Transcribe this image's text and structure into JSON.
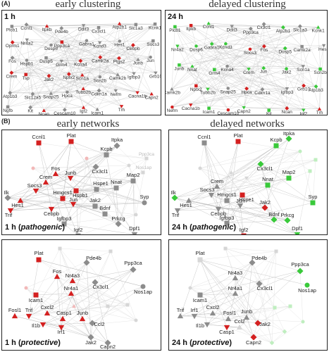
{
  "section_a": "(A)",
  "section_b": "(B)",
  "titles": {
    "early_clustering": "early clustering",
    "delayed_clustering": "delayed clustering",
    "early_networks": "early networks",
    "delayed_networks": "delayed networks"
  },
  "panels": {
    "a1": "1 h",
    "a2": "24 h",
    "b1_time": "1 h",
    "b1_cond": "pathogenic",
    "b2_time": "24 h",
    "b2_cond": "pathogenic",
    "b3_time": "1 h",
    "b3_cond": "protective",
    "b4_time": "24 h",
    "b4_cond": "protective"
  },
  "colors": {
    "red": "#d42020",
    "green": "#39c93a",
    "gray": "#8c8c8c",
    "faint_red": "#f2b8b8",
    "faint_gray": "#d6d6d6",
    "faint_green": "#bfeebf",
    "edge": "#b8b8b8"
  },
  "cluster_labels_a1": [
    "Plcb1",
    "Ccnl1",
    "Itpkb",
    "Pde4b",
    "Ddit3",
    "Cx3cl1",
    "Atp2b1",
    "Slc1a3",
    "Kcnk1",
    "Oprm1",
    "Nr4a2",
    "Dusp6",
    "Ppp3ca",
    "Gabra1",
    "Kcnd3",
    "Hes1",
    "Cebpb",
    "Socs3",
    "Fos",
    "Hspb1",
    "Dusp5",
    "Grm4",
    "Kcna4",
    "Camk2a",
    "Ptgs2",
    "Junb",
    "Jun",
    "Crem",
    "Tsp",
    "Jak2",
    "Nptx2",
    "Scn1a",
    "Scn2b",
    "Camk2b",
    "Igfbp3",
    "Grb10",
    "Atp1b3",
    "Slc12a5",
    "Snap25",
    "Hpca",
    "Tubb2b",
    "Cdkn1a",
    "Nefm",
    "Cacna1b",
    "Capn2",
    "Ngfb",
    "Kit",
    "Ncan",
    "Cescam10",
    "Igf2",
    "Icam1",
    "Trh"
  ],
  "cluster_labels_a2": [
    "Plcb1",
    "Itpkb",
    "Ccnl1",
    "Ddit3",
    "Ppp3ca",
    "Cx3cl1",
    "Atp2b1",
    "Slc1a3",
    "Kcnk1",
    "Nr4a2",
    "Dusp6",
    "Gabra1",
    "Kcnd3",
    "Socs3",
    "Fos",
    "Dusp5",
    "Camk2a",
    "Hes1",
    "Junb",
    "Nnat",
    "Grm4",
    "Kcna4",
    "Crem",
    "Jun",
    "Jak2",
    "Scn1a",
    "Scn2b",
    "Camk2b",
    "Nptx2",
    "Tubb2b",
    "Snap25",
    "Hpca",
    "Cdkn1a",
    "Igfbp3",
    "Grb10",
    "Atp1b3",
    "Nefm",
    "Cacna1b",
    "Icam1",
    "Cescam10",
    "Capn2",
    "Kit",
    "Ncan",
    "Igf2",
    "Trh"
  ],
  "b1_labels": [
    "Ccnl1",
    "Plat",
    "Itpka",
    "Kcpb",
    "Cx3cl1",
    "Fos",
    "Junb",
    "Crem",
    "Socs3",
    "Cebpb",
    "Hmgcs1",
    "Hspb1",
    "Hspe1",
    "Nnat",
    "Map2",
    "Jak2",
    "Jun",
    "Bdnf",
    "Syp",
    "Prkcg",
    "Igfbp3",
    "Dpf1",
    "Igf2",
    "Hes1",
    "Trif",
    "Ilk",
    "Ppp3ca",
    "Nos1ap"
  ],
  "b2_labels": [
    "Ccnl1",
    "Plat",
    "Itpka",
    "Kcpb",
    "Cx3cl1",
    "Crem",
    "Socs3",
    "Cebpb",
    "Hmgcs1",
    "Hspe1",
    "Nnat",
    "Map2",
    "Jak2",
    "Jun",
    "Bdnf",
    "Syp",
    "Prkcg",
    "Igfbp3",
    "Dpf1",
    "Igf2",
    "Hes1",
    "Trif",
    "Ilk"
  ],
  "b3_labels": [
    "Plat",
    "Pde4b",
    "Ppp3ca",
    "Nos1ap",
    "Fos",
    "Nr4a3",
    "Cx3cl1",
    "Icam1",
    "Nr4a1",
    "Cxcl2",
    "Junb",
    "Il1b",
    "Fosl1",
    "Trif",
    "Irf1",
    "Casp1",
    "Ccl2",
    "Jak2",
    "Capn2"
  ],
  "b4_labels": [
    "Plat",
    "Pde4b",
    "Ppp3ca",
    "Nos1ap",
    "Nr4a3",
    "Cx3cl1",
    "Icam1",
    "Nr4a1",
    "Cxcl2",
    "Junb",
    "Il1b",
    "Fosl1",
    "Trif",
    "Irf1",
    "Casp1",
    "Ccl2",
    "Jak2",
    "Capn2"
  ]
}
